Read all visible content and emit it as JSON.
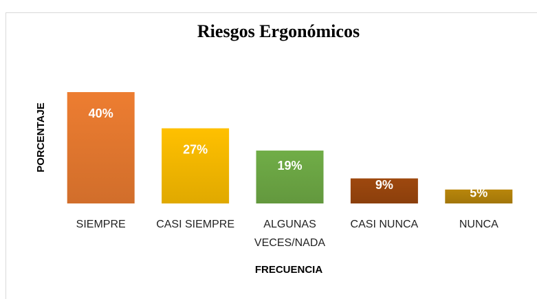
{
  "chart_data": {
    "type": "bar",
    "title": "Riesgos Ergonómicos",
    "categories": [
      "SIEMPRE",
      "CASI SIEMPRE",
      "ALGUNAS VECES/NADA",
      "CASI NUNCA",
      "NUNCA"
    ],
    "values": [
      40,
      27,
      19,
      9,
      5
    ],
    "value_labels": [
      "40%",
      "27%",
      "19%",
      "9%",
      "5%"
    ],
    "colors": [
      "#ED7D31",
      "#FFC000",
      "#70AD47",
      "#9E480E",
      "#B8860B"
    ],
    "y_label": "PORCENTAJE",
    "x_label": "FRECUENCIA"
  }
}
